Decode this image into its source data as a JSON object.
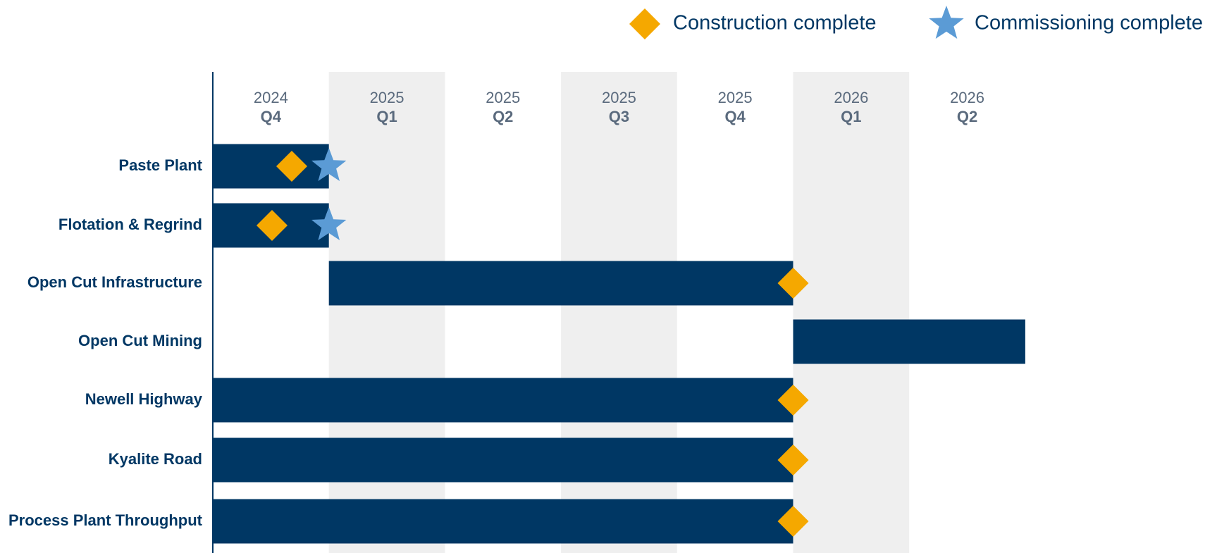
{
  "chart_data": {
    "type": "gantt",
    "legend": [
      {
        "name": "Construction complete",
        "color": "#f5a800",
        "marker": "diamond"
      },
      {
        "name": "Commissioning complete",
        "color": "#5b9bd5",
        "marker": "star"
      }
    ],
    "periods": [
      {
        "year": "2024",
        "quarter": "Q4"
      },
      {
        "year": "2025",
        "quarter": "Q1"
      },
      {
        "year": "2025",
        "quarter": "Q2"
      },
      {
        "year": "2025",
        "quarter": "Q3"
      },
      {
        "year": "2025",
        "quarter": "Q4"
      },
      {
        "year": "2026",
        "quarter": "Q1"
      },
      {
        "year": "2026",
        "quarter": "Q2"
      }
    ],
    "xlim": [
      0,
      7
    ],
    "bar_color": "#003764",
    "shade_color": "#efefef",
    "tasks": [
      {
        "name": "Paste Plant",
        "start": 0,
        "end": 1,
        "construction": 0.68,
        "commissioning": 1.0
      },
      {
        "name": "Flotation & Regrind",
        "start": 0,
        "end": 1,
        "construction": 0.51,
        "commissioning": 1.0
      },
      {
        "name": "Open Cut Infrastructure",
        "start": 1,
        "end": 5,
        "construction": 5
      },
      {
        "name": "Open Cut Mining",
        "start": 5,
        "end": 7
      },
      {
        "name": "Newell Highway",
        "start": 0,
        "end": 5,
        "construction": 5
      },
      {
        "name": "Kyalite Road",
        "start": 0,
        "end": 5,
        "construction": 5
      },
      {
        "name": "Process Plant Throughput",
        "start": 0,
        "end": 5,
        "construction": 5
      }
    ]
  }
}
